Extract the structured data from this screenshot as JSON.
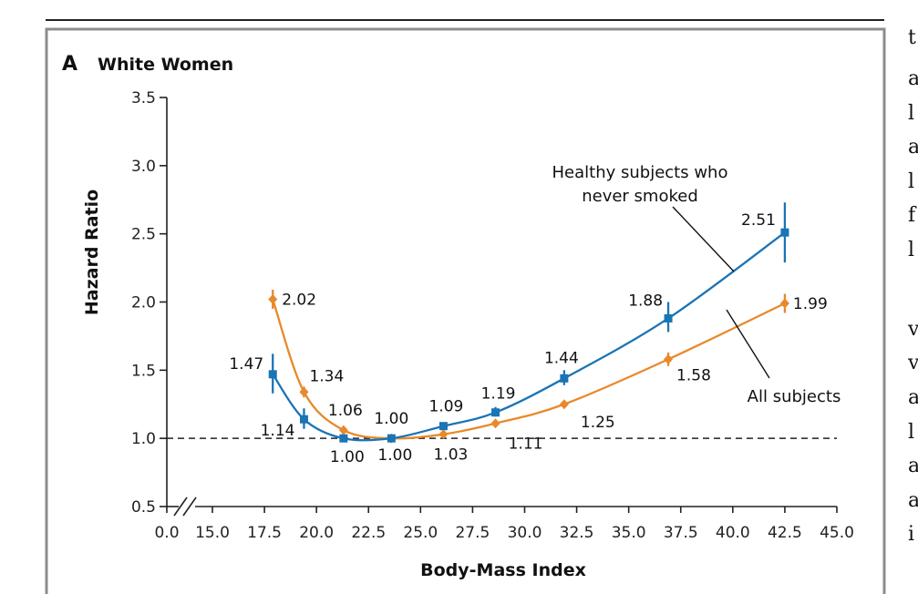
{
  "chart_data": {
    "type": "line",
    "panel_letter": "A",
    "title": "White Women",
    "xlabel": "Body-Mass Index",
    "ylabel": "Hazard Ratio",
    "x_ticks": [
      0.0,
      15.0,
      17.5,
      20.0,
      22.5,
      25.0,
      27.5,
      30.0,
      32.5,
      35.0,
      37.5,
      40.0,
      42.5,
      45.0
    ],
    "x_tick_labels": [
      "0.0",
      "15.0",
      "17.5",
      "20.0",
      "22.5",
      "25.0",
      "27.5",
      "30.0",
      "32.5",
      "35.0",
      "37.5",
      "40.0",
      "42.5",
      "45.0"
    ],
    "x_axis_break": true,
    "y_ticks": [
      0.5,
      1.0,
      1.5,
      2.0,
      2.5,
      3.0,
      3.5
    ],
    "y_tick_labels": [
      "0.5",
      "1.0",
      "1.5",
      "2.0",
      "2.5",
      "3.0",
      "3.5"
    ],
    "ylim": [
      0.5,
      3.5
    ],
    "xlim": [
      15.0,
      45.0
    ],
    "reference_line": 1.0,
    "series": [
      {
        "name": "Healthy subjects who never smoked",
        "annotation": [
          "Healthy subjects who",
          "never smoked"
        ],
        "color": "#1a74b5",
        "marker": "square",
        "x": [
          17.9,
          19.4,
          21.3,
          23.6,
          26.1,
          28.6,
          31.9,
          36.9,
          42.5
        ],
        "values": [
          1.47,
          1.14,
          1.0,
          1.0,
          1.09,
          1.19,
          1.44,
          1.88,
          2.51
        ],
        "labels": [
          "1.47",
          "1.14",
          "1.00",
          "1.00",
          "1.09",
          "1.19",
          "1.44",
          "1.88",
          "2.51"
        ],
        "ci_low": [
          1.33,
          1.07,
          0.98,
          0.98,
          1.07,
          1.16,
          1.39,
          1.78,
          2.29
        ],
        "ci_high": [
          1.62,
          1.22,
          1.02,
          1.02,
          1.11,
          1.23,
          1.5,
          2.0,
          2.73
        ]
      },
      {
        "name": "All subjects",
        "annotation": [
          "All subjects"
        ],
        "color": "#e8892b",
        "marker": "diamond",
        "x": [
          17.9,
          19.4,
          21.3,
          23.6,
          26.1,
          28.6,
          31.9,
          36.9,
          42.5
        ],
        "values": [
          2.02,
          1.34,
          1.06,
          1.0,
          1.03,
          1.11,
          1.25,
          1.58,
          1.99
        ],
        "labels": [
          "2.02",
          "1.34",
          "1.06",
          "1.00",
          "1.03",
          "1.11",
          "1.25",
          "1.58",
          "1.99"
        ],
        "ci_low": [
          1.95,
          1.3,
          1.04,
          0.99,
          1.02,
          1.09,
          1.23,
          1.53,
          1.92
        ],
        "ci_high": [
          2.09,
          1.38,
          1.08,
          1.01,
          1.04,
          1.13,
          1.27,
          1.63,
          2.06
        ]
      }
    ]
  },
  "side_text": [
    "t",
    "a",
    "l",
    "a",
    "l",
    "f",
    "l",
    "v",
    "v",
    "a",
    "l",
    "a",
    "a",
    "i"
  ]
}
